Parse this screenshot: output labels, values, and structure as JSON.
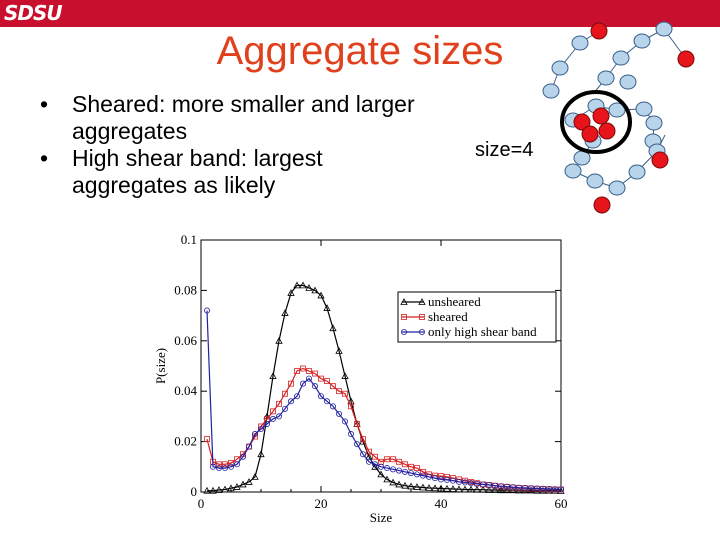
{
  "header": {
    "logo_text": "SDSU",
    "bar_color": "#c8102e"
  },
  "slide": {
    "title": "Aggregate sizes",
    "title_color": "#e0401c",
    "bullets": [
      {
        "bullet": "•",
        "text": "Sheared: more smaller and larger aggregates"
      },
      {
        "bullet": "•",
        "text": "High shear band: largest aggregates as likely"
      }
    ],
    "aggregate_label": "size=4"
  },
  "chart_data": {
    "type": "line",
    "xlabel": "Size",
    "ylabel": "P(size)",
    "xlim": [
      0,
      60
    ],
    "ylim": [
      0,
      0.1
    ],
    "xticks": [
      0,
      20,
      40,
      60
    ],
    "yticks": [
      0,
      0.02,
      0.04,
      0.06,
      0.08,
      0.1
    ],
    "yticklabels": [
      "0",
      "0.02",
      "0.04",
      "0.06",
      "0.08",
      "0.1"
    ],
    "legend_position": "top-right",
    "x": [
      1,
      2,
      3,
      4,
      5,
      6,
      7,
      8,
      9,
      10,
      11,
      12,
      13,
      14,
      15,
      16,
      17,
      18,
      19,
      20,
      21,
      22,
      23,
      24,
      25,
      26,
      27,
      28,
      29,
      30,
      31,
      32,
      33,
      34,
      35,
      36,
      37,
      38,
      39,
      40,
      41,
      42,
      43,
      44,
      45,
      46,
      47,
      48,
      49,
      50,
      51,
      52,
      53,
      54,
      55,
      56,
      57,
      58,
      59,
      60
    ],
    "series": [
      {
        "name": "unsheared",
        "color": "#000000",
        "marker": "triangle",
        "values": [
          0.0005,
          0.0005,
          0.0008,
          0.001,
          0.0015,
          0.002,
          0.003,
          0.004,
          0.006,
          0.015,
          0.03,
          0.046,
          0.06,
          0.071,
          0.079,
          0.082,
          0.082,
          0.081,
          0.08,
          0.078,
          0.073,
          0.065,
          0.056,
          0.046,
          0.036,
          0.027,
          0.02,
          0.014,
          0.01,
          0.007,
          0.005,
          0.0038,
          0.003,
          0.0025,
          0.0022,
          0.002,
          0.0018,
          0.0016,
          0.0015,
          0.0014,
          0.0013,
          0.0012,
          0.0011,
          0.001,
          0.001,
          0.0009,
          0.0009,
          0.0008,
          0.0008,
          0.0007,
          0.0007,
          0.0007,
          0.0006,
          0.0006,
          0.0006,
          0.0005,
          0.0005,
          0.0005,
          0.0005,
          0.0004
        ]
      },
      {
        "name": "sheared",
        "color": "#d42020",
        "marker": "square",
        "values": [
          0.021,
          0.012,
          0.011,
          0.011,
          0.0115,
          0.013,
          0.015,
          0.018,
          0.022,
          0.026,
          0.029,
          0.032,
          0.035,
          0.039,
          0.043,
          0.048,
          0.049,
          0.048,
          0.047,
          0.045,
          0.044,
          0.042,
          0.04,
          0.039,
          0.034,
          0.027,
          0.021,
          0.016,
          0.014,
          0.012,
          0.013,
          0.013,
          0.012,
          0.011,
          0.01,
          0.0095,
          0.008,
          0.007,
          0.0065,
          0.0063,
          0.006,
          0.0055,
          0.005,
          0.0045,
          0.004,
          0.0035,
          0.003,
          0.0028,
          0.0025,
          0.0022,
          0.002,
          0.0018,
          0.0016,
          0.0015,
          0.0014,
          0.0013,
          0.0012,
          0.0011,
          0.001,
          0.001
        ]
      },
      {
        "name": "only high shear band",
        "color": "#2020a0",
        "marker": "circle",
        "values": [
          0.072,
          0.01,
          0.0095,
          0.0095,
          0.01,
          0.011,
          0.014,
          0.018,
          0.023,
          0.025,
          0.027,
          0.029,
          0.03,
          0.033,
          0.036,
          0.038,
          0.043,
          0.045,
          0.042,
          0.038,
          0.036,
          0.034,
          0.031,
          0.028,
          0.023,
          0.019,
          0.015,
          0.012,
          0.011,
          0.01,
          0.0095,
          0.009,
          0.0085,
          0.008,
          0.0075,
          0.007,
          0.0065,
          0.006,
          0.0055,
          0.005,
          0.0048,
          0.0045,
          0.004,
          0.0038,
          0.0035,
          0.0032,
          0.003,
          0.0028,
          0.0025,
          0.0023,
          0.0021,
          0.0019,
          0.0017,
          0.0016,
          0.0015,
          0.0014,
          0.0013,
          0.0012,
          0.0011,
          0.001
        ]
      }
    ]
  }
}
